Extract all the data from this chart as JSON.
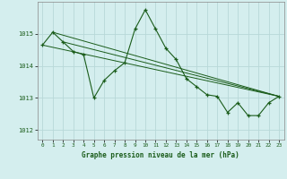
{
  "title": "Graphe pression niveau de la mer (hPa)",
  "background_color": "#d4eeee",
  "grid_color": "#b8d8d8",
  "line_color": "#1a5c1a",
  "xlim": [
    -0.5,
    23.5
  ],
  "ylim": [
    1011.7,
    1016.0
  ],
  "yticks": [
    1012,
    1013,
    1014,
    1015
  ],
  "xticks": [
    0,
    1,
    2,
    3,
    4,
    5,
    6,
    7,
    8,
    9,
    10,
    11,
    12,
    13,
    14,
    15,
    16,
    17,
    18,
    19,
    20,
    21,
    22,
    23
  ],
  "main_x": [
    0,
    1,
    2,
    3,
    4,
    5,
    6,
    7,
    8,
    9,
    10,
    11,
    12,
    13,
    14,
    15,
    16,
    17,
    18,
    19,
    20,
    21,
    22,
    23
  ],
  "main_y": [
    1014.65,
    1015.05,
    1014.75,
    1014.45,
    1014.35,
    1013.0,
    1013.55,
    1013.85,
    1014.1,
    1015.15,
    1015.75,
    1015.15,
    1014.55,
    1014.2,
    1013.6,
    1013.35,
    1013.1,
    1013.05,
    1012.55,
    1012.85,
    1012.45,
    1012.45,
    1012.85,
    1013.05
  ],
  "diag_lines": [
    {
      "x": [
        0,
        23
      ],
      "y": [
        1014.65,
        1013.05
      ]
    },
    {
      "x": [
        1,
        23
      ],
      "y": [
        1015.05,
        1013.05
      ]
    },
    {
      "x": [
        2,
        23
      ],
      "y": [
        1014.75,
        1013.05
      ]
    }
  ]
}
